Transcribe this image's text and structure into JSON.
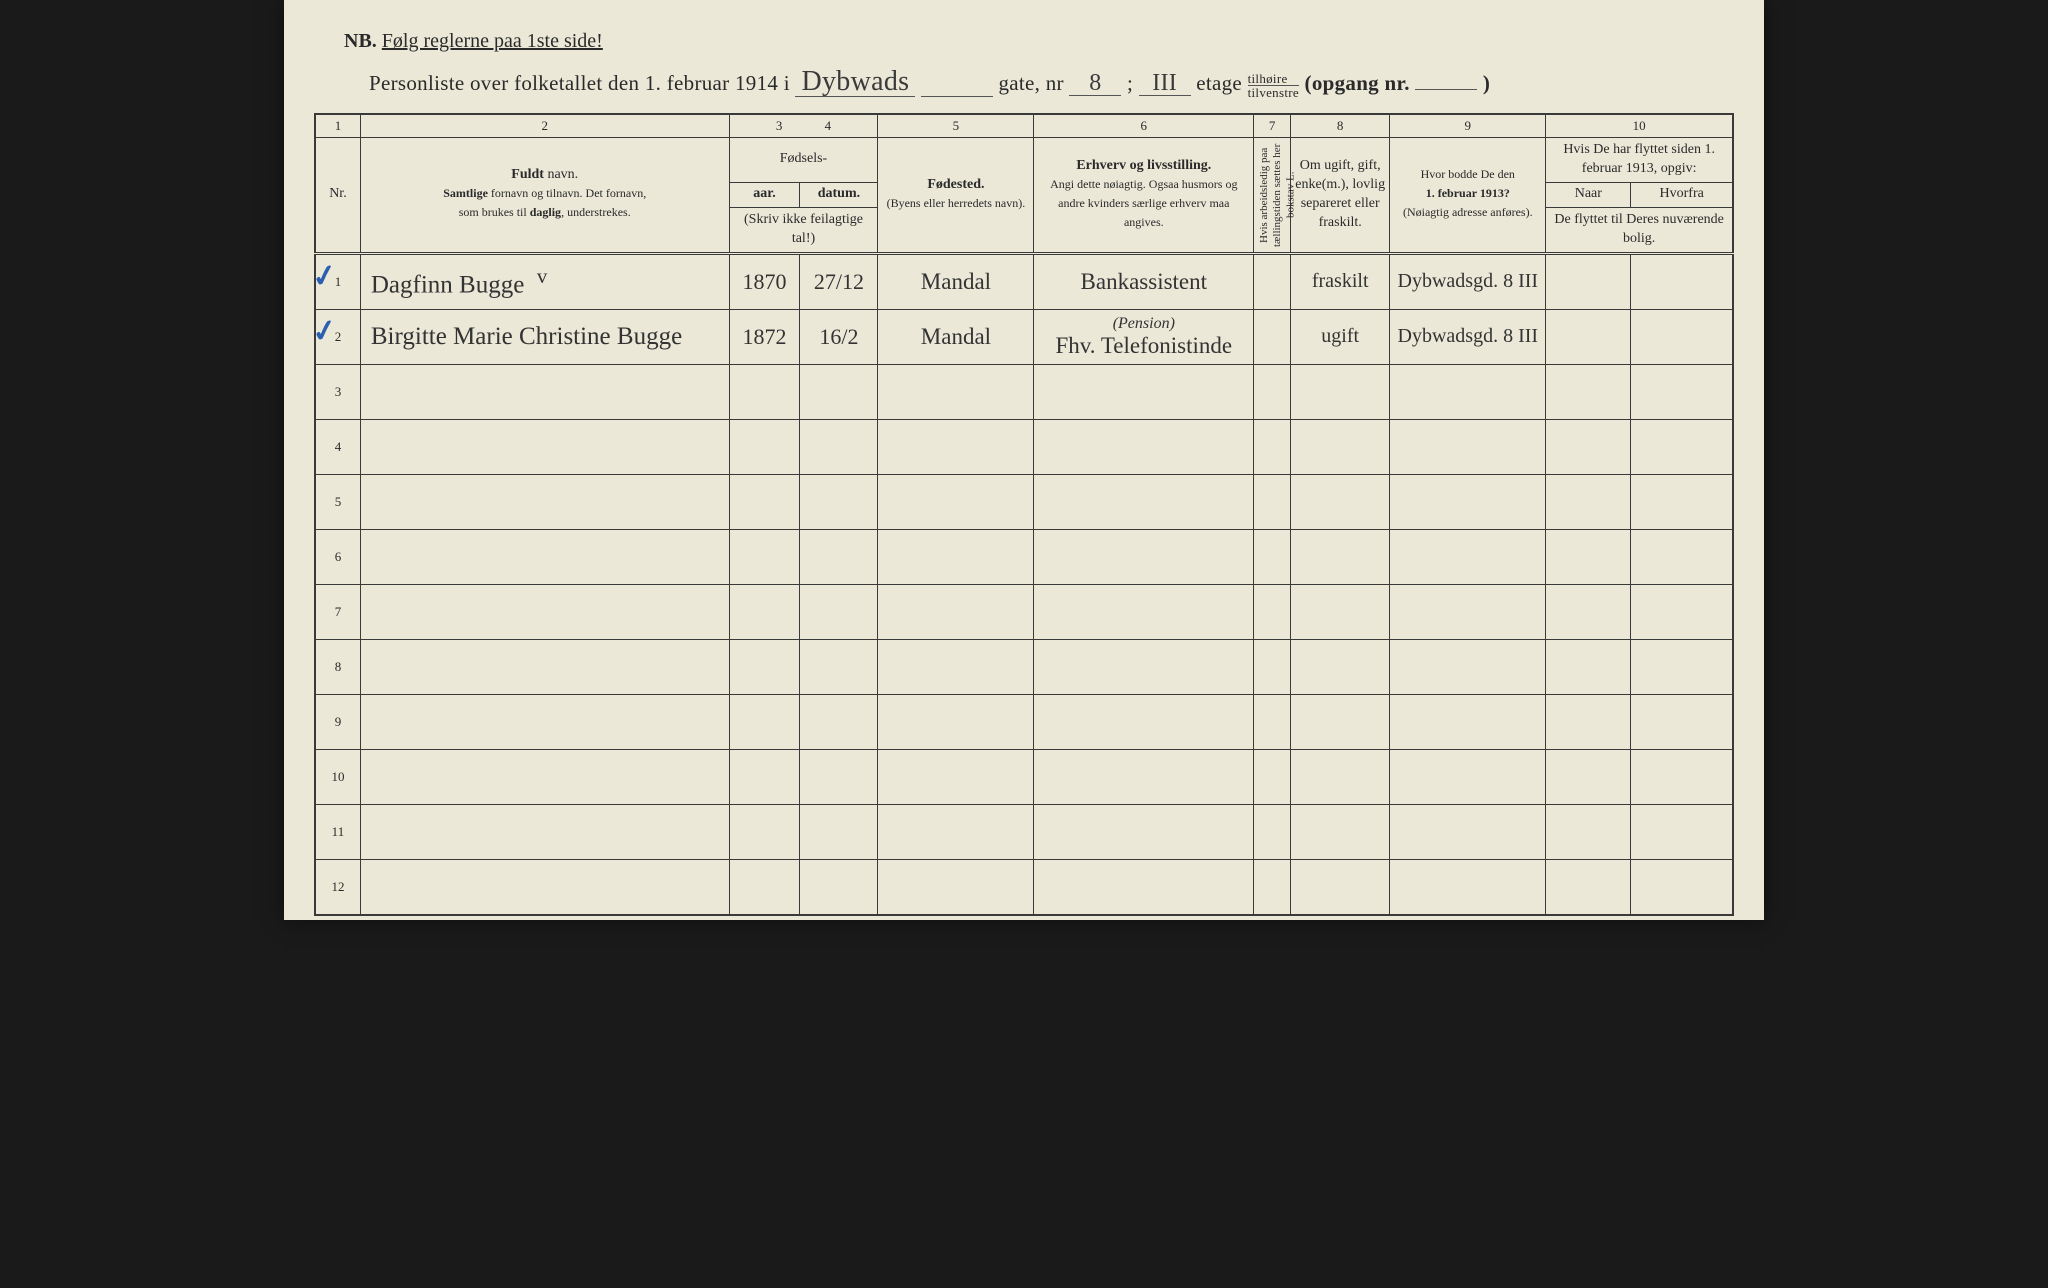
{
  "nb_prefix": "NB.",
  "nb_text": "Følg reglerne paa 1ste side!",
  "title_prefix": "Personliste over folketallet den 1. februar 1914 i",
  "street_handwritten": "Dybwads",
  "gate_label": "gate, nr",
  "gate_nr": "8",
  "semicolon": ";",
  "etage_hand": "III",
  "etage_label": "etage",
  "option_top": "tilhøire",
  "option_bot": "tilvenstre",
  "opgang_label": "(opgang nr.",
  "opgang_val": "",
  "closing": ")",
  "colnums": [
    "1",
    "2",
    "3",
    "4",
    "5",
    "6",
    "7",
    "8",
    "9",
    "10"
  ],
  "headers": {
    "nr": "Nr.",
    "name_title": "Fuldt",
    "name_title2": " navn.",
    "name_sub": "Samtlige fornavn og tilnavn. Det fornavn, som brukes til daglig, understrekes.",
    "birth_group": "Fødsels-",
    "year": "aar.",
    "date": "datum.",
    "birth_note": "(Skriv ikke feilagtige tal!)",
    "place": "Fødested.",
    "place_sub": "(Byens eller herredets navn).",
    "occ": "Erhverv og livsstilling.",
    "occ_sub": "Angi dette nøiagtig. Ogsaa husmors og andre kvinders særlige erhverv maa angives.",
    "col7": "Hvis arbeidsledig paa tællingstiden sættes her bokstav L.",
    "col8": "Om ugift, gift, enke(m.), lovlig separeret eller fraskilt.",
    "col9": "Hvor bodde De den 1. februar 1913?",
    "col9_sub": "(Nøiagtig adresse anføres).",
    "col10": "Hvis De har flyttet siden 1. februar 1913, opgiv:",
    "col10a": "Naar",
    "col10b": "Hvorfra",
    "col10_sub": "De flyttet til Deres nuværende bolig."
  },
  "rows": [
    {
      "nr": "1",
      "check": true,
      "name": "Dagfinn Bugge",
      "mark": "v",
      "year": "1870",
      "date": "27/12",
      "place": "Mandal",
      "occ": "Bankassistent",
      "col7": "",
      "status": "fraskilt",
      "addr": "Dybwadsgd. 8 III",
      "naar": "",
      "hvorfra": ""
    },
    {
      "nr": "2",
      "check": true,
      "name": "Birgitte Marie Christine Bugge",
      "mark": "",
      "year": "1872",
      "date": "16/2",
      "place": "Mandal",
      "occ": "Fhv. Telefonistinde",
      "occ_note": "(Pension)",
      "col7": "",
      "status": "ugift",
      "addr": "Dybwadsgd. 8 III",
      "naar": "",
      "hvorfra": ""
    },
    {
      "nr": "3"
    },
    {
      "nr": "4"
    },
    {
      "nr": "5"
    },
    {
      "nr": "6"
    },
    {
      "nr": "7"
    },
    {
      "nr": "8"
    },
    {
      "nr": "9"
    },
    {
      "nr": "10"
    },
    {
      "nr": "11"
    },
    {
      "nr": "12"
    }
  ],
  "colors": {
    "paper": "#ebe8d8",
    "ink": "#2a2a2a",
    "rule": "#3a3a3a",
    "check": "#2b5fb0"
  },
  "colwidths_pct": [
    3.2,
    26,
    5,
    5.5,
    11,
    15.5,
    2.6,
    7,
    11,
    6,
    7.2
  ]
}
